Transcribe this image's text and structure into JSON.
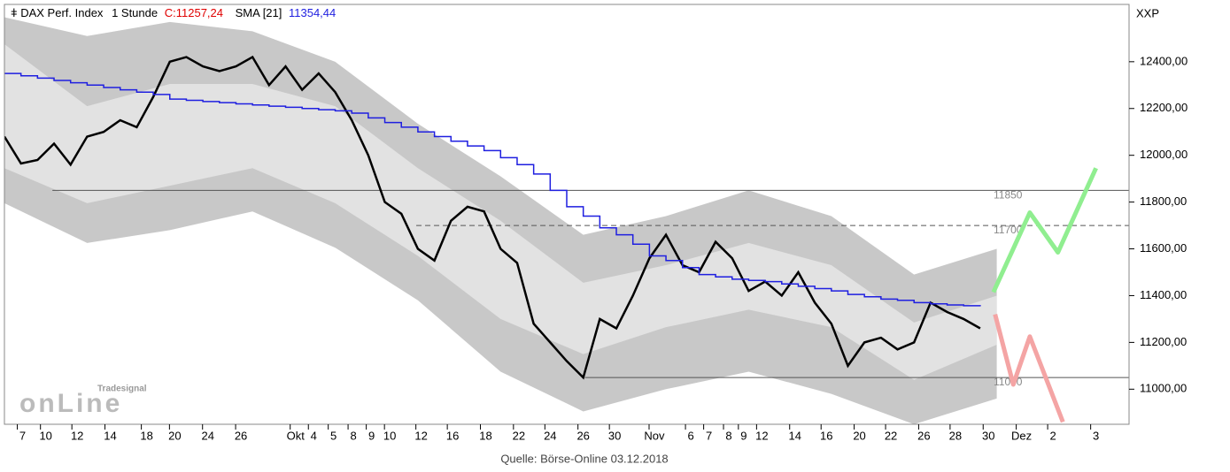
{
  "chart_data": {
    "type": "line",
    "title": "DAX Perf. Index",
    "interval": "1 Stunde",
    "close_label": "C:11257,24",
    "indicator_label": "SMA [21]",
    "indicator_value": "11354,44",
    "y_axis_label": "XXP",
    "source": "Quelle: Börse-Online 03.12.2018",
    "watermark_small": "Tradesignal",
    "watermark_big": "onLine",
    "xlim": [
      0,
      68
    ],
    "ylim": [
      10850,
      12645
    ],
    "yticks": [
      {
        "value": 11000,
        "label": "11000,00"
      },
      {
        "value": 11200,
        "label": "11200,00"
      },
      {
        "value": 11400,
        "label": "11400,00"
      },
      {
        "value": 11600,
        "label": "11600,00"
      },
      {
        "value": 11800,
        "label": "11800,00"
      },
      {
        "value": 12000,
        "label": "12000,00"
      },
      {
        "value": 12200,
        "label": "12200,00"
      },
      {
        "value": 12400,
        "label": "12400,00"
      }
    ],
    "xticks": [
      {
        "value": 1.1,
        "label": "7"
      },
      {
        "value": 2.5,
        "label": "10"
      },
      {
        "value": 4.4,
        "label": "12"
      },
      {
        "value": 6.4,
        "label": "14"
      },
      {
        "value": 8.6,
        "label": "18"
      },
      {
        "value": 10.3,
        "label": "20"
      },
      {
        "value": 12.3,
        "label": "24"
      },
      {
        "value": 14.3,
        "label": "26"
      },
      {
        "value": 17.6,
        "label": "Okt"
      },
      {
        "value": 18.7,
        "label": "4"
      },
      {
        "value": 19.9,
        "label": "5"
      },
      {
        "value": 21.1,
        "label": "8"
      },
      {
        "value": 22.2,
        "label": "9"
      },
      {
        "value": 23.3,
        "label": "10"
      },
      {
        "value": 25.2,
        "label": "12"
      },
      {
        "value": 27.1,
        "label": "16"
      },
      {
        "value": 29.1,
        "label": "18"
      },
      {
        "value": 31.1,
        "label": "22"
      },
      {
        "value": 33,
        "label": "24"
      },
      {
        "value": 35,
        "label": "26"
      },
      {
        "value": 36.9,
        "label": "30"
      },
      {
        "value": 39.3,
        "label": "Nov"
      },
      {
        "value": 41.5,
        "label": "6"
      },
      {
        "value": 42.6,
        "label": "7"
      },
      {
        "value": 43.8,
        "label": "8"
      },
      {
        "value": 44.7,
        "label": "9"
      },
      {
        "value": 45.8,
        "label": "12"
      },
      {
        "value": 47.8,
        "label": "14"
      },
      {
        "value": 49.7,
        "label": "16"
      },
      {
        "value": 51.7,
        "label": "20"
      },
      {
        "value": 53.6,
        "label": "22"
      },
      {
        "value": 55.6,
        "label": "26"
      },
      {
        "value": 57.5,
        "label": "28"
      },
      {
        "value": 59.5,
        "label": "30"
      },
      {
        "value": 61.5,
        "label": "Dez"
      },
      {
        "value": 63.4,
        "label": "2"
      },
      {
        "value": 66,
        "label": "3"
      }
    ],
    "x": [
      0,
      1,
      2,
      3,
      4,
      5,
      6,
      7,
      8,
      9,
      10,
      11,
      12,
      13,
      14,
      15,
      16,
      17,
      18,
      19,
      20,
      21,
      22,
      23,
      24,
      25,
      26,
      27,
      28,
      29,
      30,
      31,
      32,
      33,
      34,
      35,
      36,
      37,
      38,
      39,
      40,
      41,
      42,
      43,
      44,
      45,
      46,
      47,
      48,
      49,
      50,
      51,
      52,
      53,
      54,
      55,
      56,
      57,
      58,
      59
    ],
    "series": [
      {
        "name": "DAX Perf. Index",
        "color": "#000000",
        "values": [
          12080,
          11965,
          11980,
          12050,
          11960,
          12080,
          12100,
          12150,
          12120,
          12250,
          12400,
          12420,
          12380,
          12360,
          12380,
          12420,
          12300,
          12380,
          12280,
          12350,
          12270,
          12150,
          12000,
          11800,
          11750,
          11600,
          11550,
          11720,
          11780,
          11760,
          11600,
          11540,
          11280,
          11200,
          11120,
          11050,
          11300,
          11260,
          11400,
          11560,
          11660,
          11530,
          11500,
          11630,
          11560,
          11420,
          11460,
          11400,
          11500,
          11370,
          11280,
          11100,
          11200,
          11220,
          11170,
          11200,
          11370,
          11330,
          11300,
          11260
        ]
      },
      {
        "name": "SMA [21]",
        "color": "#1f1fe0",
        "values": [
          12350,
          12340,
          12330,
          12320,
          12310,
          12300,
          12290,
          12280,
          12270,
          12260,
          12240,
          12235,
          12230,
          12225,
          12220,
          12215,
          12210,
          12205,
          12200,
          12195,
          12190,
          12180,
          12160,
          12140,
          12120,
          12100,
          12080,
          12060,
          12040,
          12020,
          11990,
          11960,
          11920,
          11850,
          11780,
          11740,
          11690,
          11660,
          11620,
          11570,
          11550,
          11520,
          11490,
          11480,
          11470,
          11465,
          11460,
          11450,
          11440,
          11430,
          11420,
          11405,
          11395,
          11385,
          11380,
          11370,
          11365,
          11360,
          11357,
          11354.44
        ]
      }
    ],
    "bands": {
      "x": [
        0,
        5,
        10,
        15,
        20,
        25,
        30,
        35,
        40,
        45,
        50,
        55,
        60
      ],
      "outer_upper": [
        12590,
        12510,
        12570,
        12530,
        12400,
        12135,
        11910,
        11660,
        11740,
        11850,
        11740,
        11490,
        11600
      ],
      "inner_upper": [
        12475,
        12210,
        12305,
        12305,
        12210,
        11945,
        11720,
        11455,
        11530,
        11625,
        11530,
        11285,
        11400
      ],
      "inner_lower": [
        11945,
        11795,
        11870,
        11945,
        11795,
        11570,
        11300,
        11150,
        11265,
        11340,
        11265,
        11040,
        11190
      ],
      "outer_lower": [
        11795,
        11625,
        11680,
        11760,
        11605,
        11380,
        11075,
        10905,
        11000,
        11075,
        10980,
        10850,
        10960
      ],
      "outer_color": "#c8c8c8",
      "inner_color": "#e2e2e2"
    },
    "levels": [
      {
        "value": 11850,
        "label": "11850",
        "start": 2.9,
        "dashed": false
      },
      {
        "value": 11700,
        "label": "11700",
        "start": 24.9,
        "dashed": true
      },
      {
        "value": 11050,
        "label": "11050",
        "start": 35.1,
        "dashed": false
      }
    ],
    "projections": [
      {
        "color": "#90ee90",
        "x": [
          59.8,
          62,
          63.7,
          66
        ],
        "values": [
          11415,
          11755,
          11585,
          11945
        ]
      },
      {
        "color": "#f4a4a4",
        "x": [
          59.9,
          61,
          62,
          64
        ],
        "values": [
          11320,
          11020,
          11225,
          10860
        ]
      }
    ]
  }
}
